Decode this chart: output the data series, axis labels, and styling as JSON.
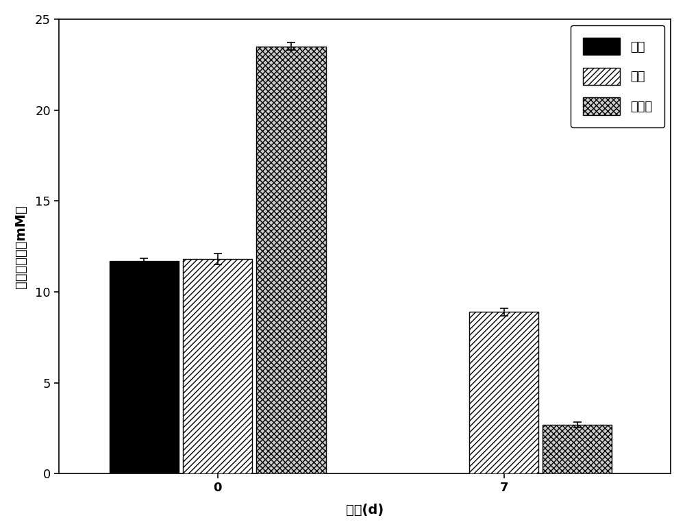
{
  "time_points": [
    0,
    7
  ],
  "series": [
    {
      "label": "厉氧",
      "values": [
        11.7,
        0.0
      ],
      "errors": [
        0.15,
        0.0
      ],
      "color": "#000000",
      "hatch": "",
      "show": [
        true,
        false
      ]
    },
    {
      "label": "好氧",
      "values": [
        11.8,
        8.9
      ],
      "errors": [
        0.3,
        0.2
      ],
      "color": "#ffffff",
      "hatch": "////",
      "show": [
        true,
        true
      ]
    },
    {
      "label": "双阶段",
      "values": [
        23.5,
        2.7
      ],
      "errors": [
        0.2,
        0.15
      ],
      "color": "#cccccc",
      "hatch": "xxxx",
      "show": [
        true,
        true
      ]
    }
  ],
  "ylabel": "硫酸盐浓度（mM）",
  "xlabel": "时间(d)",
  "ylim": [
    0,
    25
  ],
  "yticks": [
    0,
    5,
    10,
    15,
    20,
    25
  ],
  "xtick_labels": [
    "0",
    "7"
  ],
  "bar_width": 0.18,
  "group_centers": [
    0.28,
    1.0
  ],
  "offsets": [
    -0.185,
    0.0,
    0.185
  ],
  "background_color": "#ffffff",
  "plot_bg_color": "#ffffff",
  "edge_color": "#000000",
  "axis_fontsize": 14,
  "tick_fontsize": 13,
  "legend_fontsize": 13
}
